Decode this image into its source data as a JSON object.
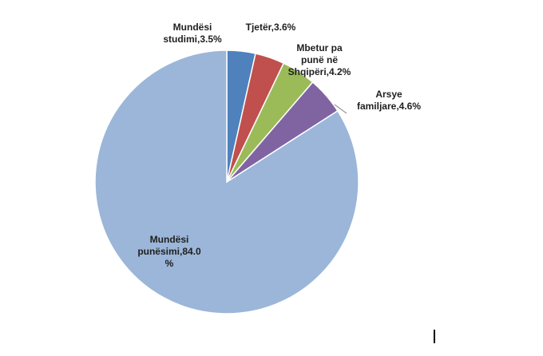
{
  "chart_data": {
    "type": "pie",
    "title": "",
    "slices": [
      {
        "label_lines": [
          "Mundësi",
          "studimi,3.5%"
        ],
        "value": 3.5,
        "color": "#4f81bd"
      },
      {
        "label_lines": [
          "Tjetër,3.6%"
        ],
        "value": 3.6,
        "color": "#c0504d"
      },
      {
        "label_lines": [
          "Mbetur pa",
          "punë në",
          "Shqipëri,4.2%"
        ],
        "value": 4.2,
        "color": "#9bbb59"
      },
      {
        "label_lines": [
          "Arsye",
          "familjare,4.6%"
        ],
        "value": 4.6,
        "color": "#8064a2"
      },
      {
        "label_lines": [
          "Mundësi",
          "punësimi,84.0",
          "%"
        ],
        "value": 84.0,
        "color": "#9bb6d8"
      }
    ],
    "start_angle_deg": 0,
    "direction": "clockwise",
    "legend": "none",
    "data_labels": "category-name-and-percent"
  }
}
